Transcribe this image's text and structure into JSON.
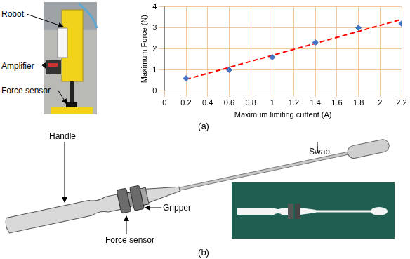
{
  "panel_labels": [
    "(a)",
    "(b)"
  ],
  "photo": {
    "labels": [
      "Robot",
      "Amplifier",
      "Force sensor"
    ]
  },
  "chart_data": {
    "type": "scatter",
    "x_label": "Maximum limiting cuttent (A)",
    "y_label": "Maximum Force (N)",
    "series": [
      {
        "type": "scatter",
        "color": "#4472c4",
        "marker": "diamond",
        "x": [
          0.2,
          0.6,
          1.0,
          1.4,
          1.8,
          2.2
        ],
        "values": [
          0.6,
          1.0,
          1.6,
          2.3,
          3.0,
          3.2
        ]
      },
      {
        "type": "line",
        "color": "#ff0000",
        "line_style": "dashed",
        "x": [
          0.2,
          2.2
        ],
        "values": [
          0.55,
          3.4
        ]
      }
    ],
    "xlim": [
      0,
      2.2
    ],
    "xticks": [
      0,
      0.2,
      0.4,
      0.6,
      0.8,
      1,
      1.2,
      1.4,
      1.6,
      1.8,
      2,
      2.2
    ],
    "ylim": [
      0,
      4
    ],
    "yticks": [
      0,
      1,
      2,
      3,
      4
    ],
    "grid": true
  },
  "diagram": {
    "labels": {
      "handle": "Handle",
      "gripper": "Gripper",
      "swab": "Swab",
      "force_sensor": "Force sensor"
    }
  }
}
